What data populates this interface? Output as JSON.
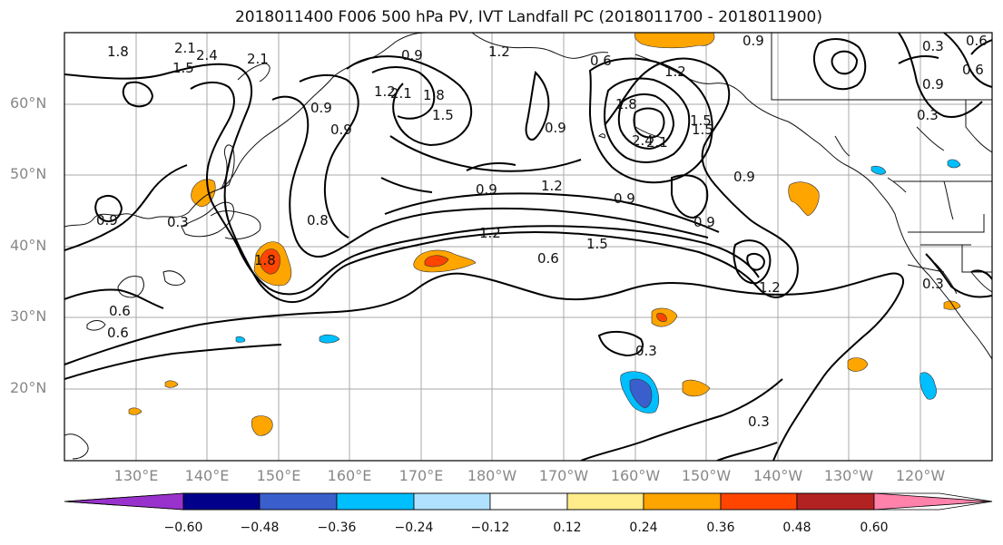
{
  "title": "2018011400 F006 500 hPa PV, IVT Landfall PC (2018011700 - 2018011900)",
  "lat_labels": [
    "60°N",
    "50°N",
    "40°N",
    "30°N",
    "20°N"
  ],
  "lon_labels": [
    "130°E",
    "140°E",
    "150°E",
    "160°E",
    "170°E",
    "180°W",
    "170°W",
    "160°W",
    "150°W",
    "140°W",
    "130°W",
    "120°W"
  ],
  "colorbar": {
    "colors": [
      "#9932cc",
      "#00008b",
      "#3a5fcd",
      "#00bfff",
      "#b0e2ff",
      "#ffffff",
      "#ffec8b",
      "#ffa500",
      "#ff4500",
      "#b22222",
      "#ff82ab"
    ],
    "tick_labels": [
      "−0.60",
      "−0.48",
      "−0.36",
      "−0.24",
      "−0.12",
      "0.12",
      "0.24",
      "0.36",
      "0.48",
      "0.60"
    ]
  },
  "contour_labels": [
    "1.8",
    "2.1",
    "2.4",
    "1.5",
    "2.1",
    "0.9",
    "1.2",
    "1.8",
    "2.1",
    "0.9",
    "0.3",
    "0.6",
    "0.9",
    "0.3",
    "0.6",
    "0.9",
    "1.5",
    "1.2",
    "0.9",
    "0.9",
    "1.2",
    "0.9",
    "0.6",
    "0.3",
    "1.5",
    "1.8",
    "2.1",
    "2.4",
    "1.2",
    "0.9",
    "0.9",
    "0.9",
    "1.2",
    "1.5",
    "0.6",
    "0.9",
    "0.8",
    "1.8",
    "1.2",
    "1.5",
    "0.3",
    "0.6",
    "0.6",
    "0.3",
    "0.3"
  ]
}
